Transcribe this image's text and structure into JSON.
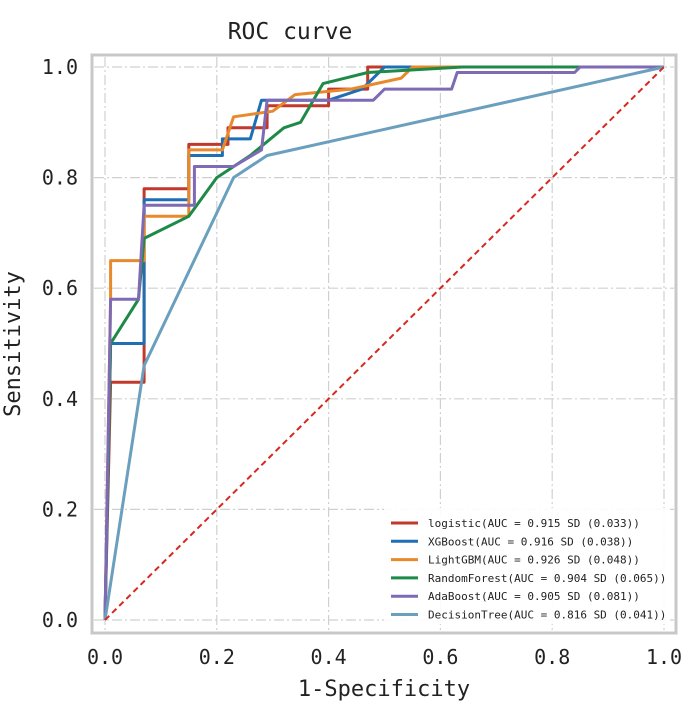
{
  "chart_data": {
    "type": "line",
    "title": "ROC curve",
    "xlabel": "1-Specificity",
    "ylabel": "Sensitivity",
    "xlim": [
      0,
      1
    ],
    "ylim": [
      0,
      1
    ],
    "x_ticks": [
      "0.0",
      "0.2",
      "0.4",
      "0.6",
      "0.8",
      "1.0"
    ],
    "y_ticks": [
      "0.0",
      "0.2",
      "0.4",
      "0.6",
      "0.8",
      "1.0"
    ],
    "grid": true,
    "legend_position": "bottom-right",
    "series": [
      {
        "name": "logistic",
        "label": "logistic(AUC = 0.915 SD (0.033))",
        "color": "#c0392b",
        "points": [
          [
            0,
            0
          ],
          [
            0.01,
            0.43
          ],
          [
            0.07,
            0.43
          ],
          [
            0.07,
            0.78
          ],
          [
            0.15,
            0.78
          ],
          [
            0.15,
            0.86
          ],
          [
            0.22,
            0.86
          ],
          [
            0.22,
            0.89
          ],
          [
            0.29,
            0.89
          ],
          [
            0.29,
            0.93
          ],
          [
            0.4,
            0.93
          ],
          [
            0.4,
            0.96
          ],
          [
            0.47,
            0.96
          ],
          [
            0.47,
            1.0
          ],
          [
            1.0,
            1.0
          ]
        ]
      },
      {
        "name": "XGBoost",
        "label": "XGBoost(AUC = 0.916 SD (0.038))",
        "color": "#1f6fb5",
        "points": [
          [
            0,
            0
          ],
          [
            0.01,
            0.5
          ],
          [
            0.07,
            0.5
          ],
          [
            0.07,
            0.76
          ],
          [
            0.15,
            0.76
          ],
          [
            0.15,
            0.84
          ],
          [
            0.21,
            0.84
          ],
          [
            0.21,
            0.87
          ],
          [
            0.26,
            0.87
          ],
          [
            0.28,
            0.94
          ],
          [
            0.4,
            0.94
          ],
          [
            0.46,
            0.96
          ],
          [
            0.5,
            1.0
          ],
          [
            1.0,
            1.0
          ]
        ]
      },
      {
        "name": "LightGBM",
        "label": "LightGBM(AUC = 0.926 SD (0.048))",
        "color": "#e8892c",
        "points": [
          [
            0,
            0
          ],
          [
            0.01,
            0.58
          ],
          [
            0.01,
            0.65
          ],
          [
            0.07,
            0.65
          ],
          [
            0.07,
            0.73
          ],
          [
            0.15,
            0.73
          ],
          [
            0.15,
            0.85
          ],
          [
            0.21,
            0.85
          ],
          [
            0.23,
            0.91
          ],
          [
            0.3,
            0.92
          ],
          [
            0.34,
            0.95
          ],
          [
            0.44,
            0.96
          ],
          [
            0.53,
            0.98
          ],
          [
            0.55,
            1.0
          ],
          [
            1.0,
            1.0
          ]
        ]
      },
      {
        "name": "RandomForest",
        "label": "RandomForest(AUC = 0.904 SD (0.065))",
        "color": "#1e8a47",
        "points": [
          [
            0,
            0
          ],
          [
            0.01,
            0.5
          ],
          [
            0.06,
            0.58
          ],
          [
            0.07,
            0.69
          ],
          [
            0.15,
            0.73
          ],
          [
            0.2,
            0.8
          ],
          [
            0.26,
            0.84
          ],
          [
            0.32,
            0.89
          ],
          [
            0.35,
            0.9
          ],
          [
            0.39,
            0.97
          ],
          [
            0.43,
            0.98
          ],
          [
            0.47,
            0.99
          ],
          [
            0.64,
            1.0
          ],
          [
            1.0,
            1.0
          ]
        ]
      },
      {
        "name": "AdaBoost",
        "label": "AdaBoost(AUC = 0.905 SD (0.081))",
        "color": "#7e6ab5",
        "points": [
          [
            0,
            0
          ],
          [
            0.01,
            0.58
          ],
          [
            0.06,
            0.58
          ],
          [
            0.07,
            0.75
          ],
          [
            0.16,
            0.75
          ],
          [
            0.16,
            0.82
          ],
          [
            0.23,
            0.82
          ],
          [
            0.28,
            0.85
          ],
          [
            0.29,
            0.94
          ],
          [
            0.48,
            0.94
          ],
          [
            0.5,
            0.96
          ],
          [
            0.62,
            0.96
          ],
          [
            0.63,
            0.99
          ],
          [
            0.84,
            0.99
          ],
          [
            0.85,
            1.0
          ],
          [
            1.0,
            1.0
          ]
        ]
      },
      {
        "name": "DecisionTree",
        "label": "DecisionTree(AUC = 0.816 SD (0.041))",
        "color": "#6b9fbe",
        "points": [
          [
            0,
            0
          ],
          [
            0.07,
            0.46
          ],
          [
            0.23,
            0.8
          ],
          [
            0.29,
            0.84
          ],
          [
            1.0,
            1.0
          ]
        ]
      },
      {
        "name": "chance",
        "label": "",
        "color": "#d7281e",
        "dashed": true,
        "points": [
          [
            0,
            0
          ],
          [
            1,
            1
          ]
        ]
      }
    ]
  }
}
